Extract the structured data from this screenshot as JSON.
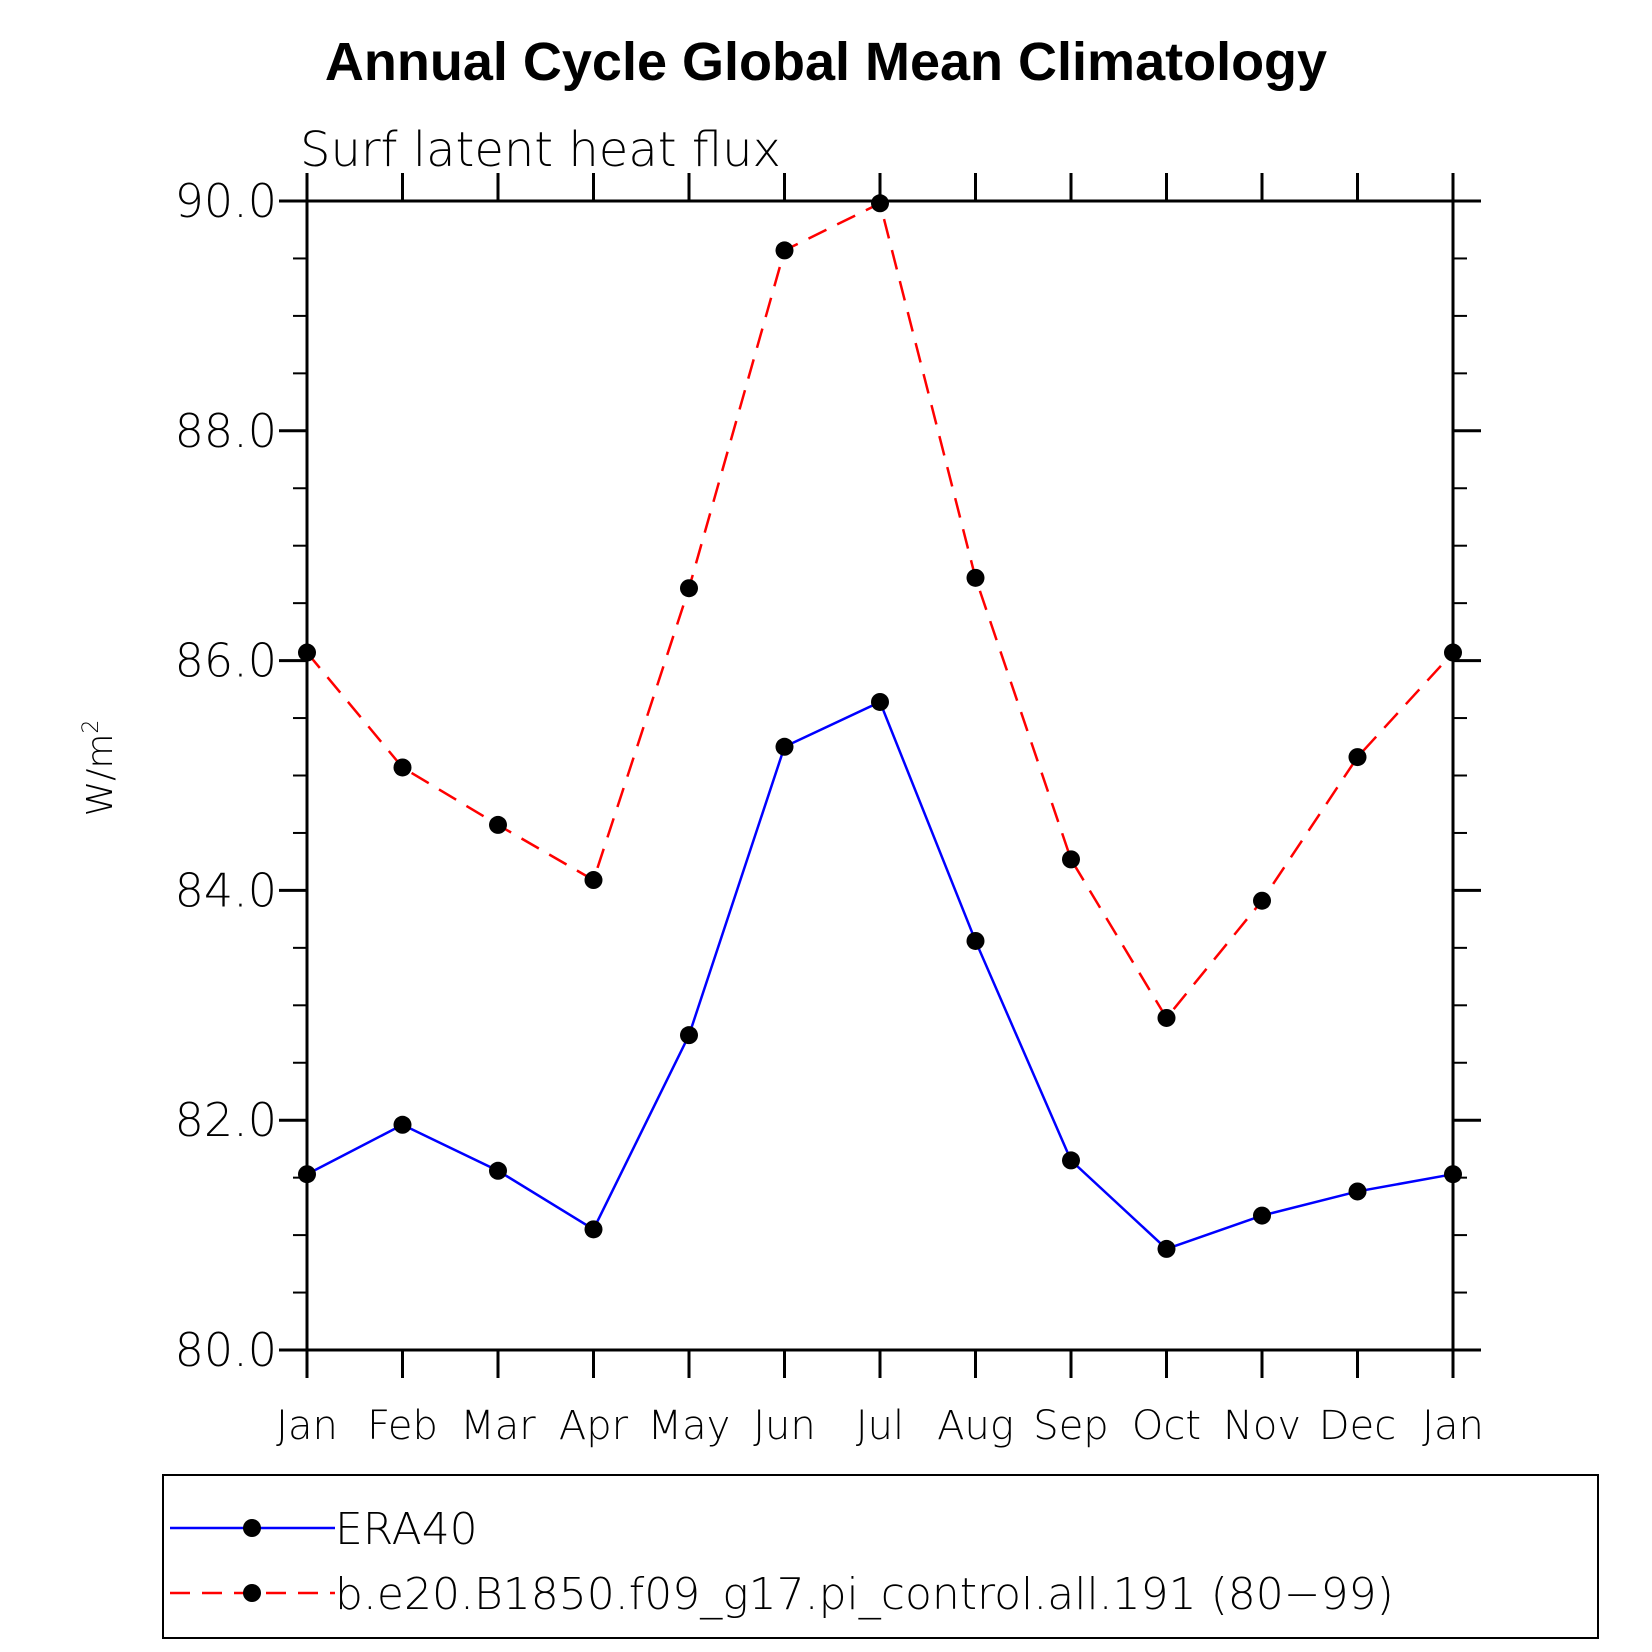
{
  "chart_data": {
    "type": "line",
    "title": "Annual Cycle Global Mean Climatology",
    "subtitle": "Surf latent heat flux",
    "ylabel": "W/m",
    "ylabel_superscript": "2",
    "xlabel": "",
    "categories": [
      "Jan",
      "Feb",
      "Mar",
      "Apr",
      "May",
      "Jun",
      "Jul",
      "Aug",
      "Sep",
      "Oct",
      "Nov",
      "Dec",
      "Jan"
    ],
    "ylim": [
      80.0,
      90.0
    ],
    "yticks": [
      "80.0",
      "82.0",
      "84.0",
      "86.0",
      "88.0",
      "90.0"
    ],
    "grid": false,
    "legend_position": "bottom",
    "series": [
      {
        "name": "ERA40",
        "color": "#0000ff",
        "dash": "solid",
        "marker": "filled-circle",
        "values": [
          81.53,
          81.96,
          81.56,
          81.05,
          82.74,
          85.25,
          85.64,
          83.56,
          81.65,
          80.88,
          81.17,
          81.38,
          81.53
        ]
      },
      {
        "name": "b.e20.B1850.f09_g17.pi_control.all.191 (80−99)",
        "color": "#ff0000",
        "dash": "dashed",
        "marker": "filled-circle",
        "values": [
          86.07,
          85.07,
          84.57,
          84.09,
          86.63,
          89.57,
          89.98,
          86.72,
          84.27,
          82.89,
          83.91,
          85.16,
          86.07
        ]
      }
    ]
  }
}
